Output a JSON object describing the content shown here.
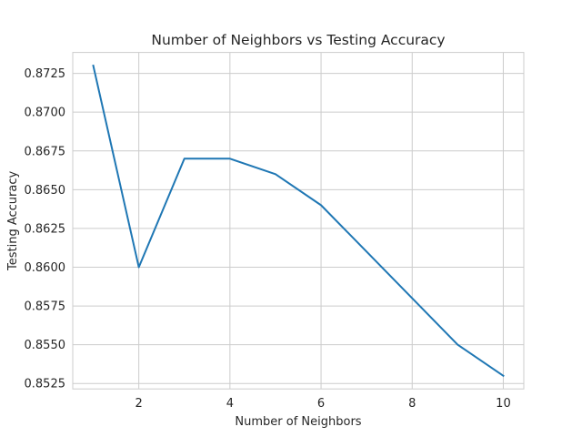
{
  "chart_data": {
    "type": "line",
    "title": "Number of Neighbors vs Testing Accuracy",
    "xlabel": "Number of Neighbors",
    "ylabel": "Testing Accuracy",
    "xlim": [
      0.55,
      10.45
    ],
    "ylim": [
      0.85215,
      0.87385
    ],
    "xticks": [
      2,
      4,
      6,
      8,
      10
    ],
    "xtick_labels": [
      "2",
      "4",
      "6",
      "8",
      "10"
    ],
    "yticks": [
      0.8525,
      0.855,
      0.8575,
      0.86,
      0.8625,
      0.865,
      0.8675,
      0.87,
      0.8725
    ],
    "ytick_labels": [
      "0.8525",
      "0.8550",
      "0.8575",
      "0.8600",
      "0.8625",
      "0.8650",
      "0.8675",
      "0.8700",
      "0.8725"
    ],
    "grid": true,
    "series": [
      {
        "color": "#1f77b4",
        "x": [
          1,
          2,
          3,
          4,
          5,
          6,
          7,
          8,
          9,
          10
        ],
        "y": [
          0.873,
          0.86,
          0.867,
          0.867,
          0.866,
          0.864,
          0.861,
          0.858,
          0.855,
          0.853
        ]
      }
    ]
  }
}
